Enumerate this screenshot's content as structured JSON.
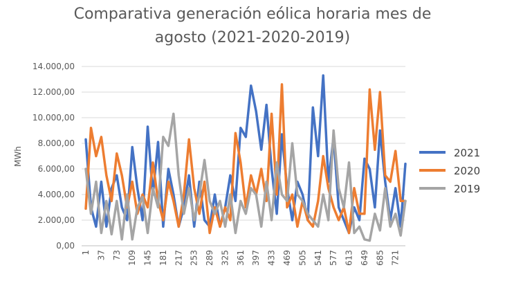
{
  "chart_data": {
    "type": "line",
    "title_line1": "Comparativa generación eólica horaria mes de",
    "title_line2": "agosto (2021-2020-2019)",
    "xlabel": "",
    "ylabel": "MWh",
    "ylim": [
      0,
      14000
    ],
    "y_ticks": [
      "0,00",
      "2.000,00",
      "4.000,00",
      "6.000,00",
      "8.000,00",
      "10.000,00",
      "12.000,00",
      "14.000,00"
    ],
    "x_ticks": [
      "1",
      "37",
      "73",
      "109",
      "145",
      "181",
      "217",
      "253",
      "289",
      "325",
      "361",
      "397",
      "433",
      "469",
      "505",
      "541",
      "577",
      "613",
      "649",
      "685",
      "721"
    ],
    "xlim": [
      1,
      744
    ],
    "grid": true,
    "legend_position": "right",
    "x": [
      1,
      13,
      25,
      37,
      49,
      61,
      73,
      85,
      97,
      109,
      121,
      133,
      145,
      157,
      169,
      181,
      193,
      205,
      217,
      229,
      241,
      253,
      265,
      277,
      289,
      301,
      313,
      325,
      337,
      349,
      361,
      373,
      385,
      397,
      409,
      421,
      433,
      445,
      457,
      469,
      481,
      493,
      505,
      517,
      529,
      541,
      553,
      565,
      577,
      589,
      601,
      613,
      625,
      637,
      649,
      661,
      673,
      685,
      697,
      709,
      721,
      733,
      744
    ],
    "series": [
      {
        "name": "2021",
        "color": "#4472C4",
        "values": [
          8300,
          3000,
          1500,
          5000,
          1500,
          4500,
          5500,
          3000,
          2000,
          7700,
          4500,
          2000,
          9300,
          4000,
          8100,
          1500,
          6000,
          4000,
          1500,
          3000,
          5500,
          1500,
          5000,
          2000,
          1500,
          4000,
          1500,
          3000,
          5500,
          3500,
          9200,
          8500,
          12500,
          10500,
          7500,
          11000,
          6000,
          2500,
          8700,
          4500,
          2000,
          5000,
          4000,
          2000,
          10800,
          7000,
          13300,
          5000,
          8500,
          3000,
          2000,
          1000,
          3000,
          2000,
          6800,
          6000,
          3000,
          9000,
          5000,
          2000,
          4500,
          1500,
          6400
        ]
      },
      {
        "name": "2020",
        "color": "#ED7D31",
        "values": [
          2900,
          9200,
          7000,
          8500,
          5500,
          3500,
          7200,
          5500,
          3000,
          5000,
          2500,
          4000,
          3000,
          6500,
          3500,
          2000,
          5000,
          3500,
          1500,
          4000,
          8300,
          4500,
          2500,
          5000,
          1000,
          3000,
          1500,
          3000,
          2000,
          8800,
          6500,
          3000,
          5500,
          4000,
          6000,
          3500,
          10300,
          4000,
          12600,
          3000,
          4000,
          1500,
          3500,
          2000,
          1500,
          3500,
          7000,
          4500,
          3000,
          2000,
          3000,
          1000,
          4500,
          2500,
          2500,
          12200,
          7500,
          12000,
          5500,
          5000,
          7400,
          3500,
          3500
        ]
      },
      {
        "name": "2019",
        "color": "#A5A5A5",
        "values": [
          6000,
          2500,
          5000,
          1000,
          3500,
          900,
          3500,
          500,
          4000,
          500,
          3000,
          3800,
          1000,
          4500,
          3000,
          8500,
          7800,
          10300,
          5500,
          2500,
          4500,
          2000,
          4000,
          6700,
          3500,
          2500,
          3500,
          1500,
          4000,
          1000,
          3500,
          2500,
          4500,
          4000,
          1500,
          5000,
          2000,
          6500,
          4000,
          3500,
          8000,
          4000,
          3500,
          2500,
          2000,
          1500,
          4000,
          2000,
          9000,
          4500,
          3000,
          6500,
          1000,
          1500,
          500,
          400,
          2500,
          1200,
          4500,
          1500,
          2500,
          800,
          3500
        ]
      }
    ]
  }
}
